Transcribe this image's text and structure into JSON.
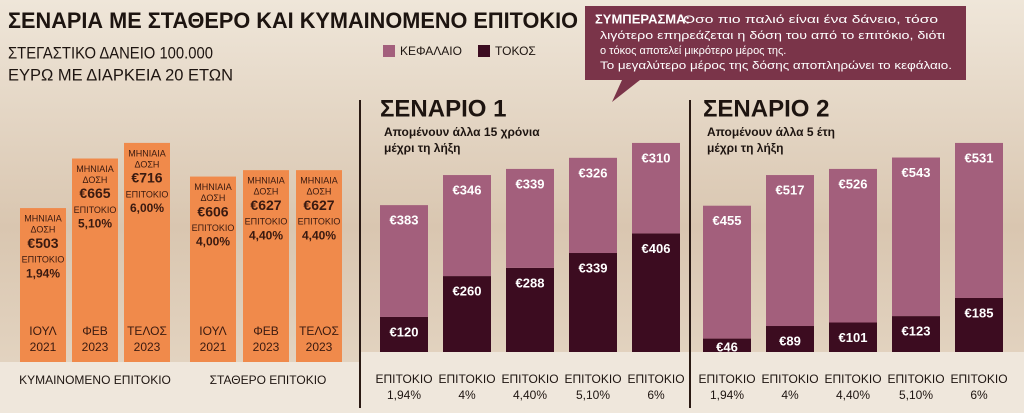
{
  "chart_data": [
    {
      "type": "bar",
      "title": "ΣΕΝΑΡΙΑ ΜΕ ΣΤΑΘΕΡΟ ΚΑΙ ΚΥΜΑΙΝΟΜΕΝΟ ΕΠΙΤΟΚΙΟ",
      "subtitle": [
        "ΣΤΕΓΑΣΤΙΚΟ ΔΑΝΕΙΟ 100.000",
        "ΕΥΡΩ ΜΕ ΔΙΑΡΚΕΙΑ 20 ΕΤΩΝ"
      ],
      "groups": [
        "ΚΥΜΑΙΝΟΜΕΝΟ ΕΠΙΤΟΚΙΟ",
        "ΣΤΑΘΕΡΟ ΕΠΙΤΟΚΙΟ"
      ],
      "payment_label": [
        "ΜΗΝΙΑΙΑ",
        "ΔΟΣΗ"
      ],
      "rate_label": "ΕΠΙΤΟΚΙΟ",
      "categories": [
        [
          "ΙΟΥΛ",
          "2021"
        ],
        [
          "ΦΕΒ",
          "2023"
        ],
        [
          "ΤΕΛΟΣ",
          "2023"
        ],
        [
          "ΙΟΥΛ",
          "2021"
        ],
        [
          "ΦΕΒ",
          "2023"
        ],
        [
          "ΤΕΛΟΣ",
          "2023"
        ]
      ],
      "values": [
        503,
        665,
        716,
        606,
        627,
        627
      ],
      "value_labels": [
        "€503",
        "€665",
        "€716",
        "€606",
        "€627",
        "€627"
      ],
      "rates": [
        1.94,
        5.1,
        6.0,
        4.0,
        4.4,
        4.4
      ],
      "rate_labels": [
        "1,94%",
        "5,10%",
        "6,00%",
        "4,00%",
        "4,40%",
        "4,40%"
      ],
      "color": "#f08a4b"
    },
    {
      "type": "stacked_bar",
      "title": "ΣΕΝΑΡΙΟ 1",
      "subtitle": [
        "Απομένουν άλλα 15 χρόνια",
        "μέχρι τη λήξη"
      ],
      "note_title": "ΣΥΜΠΕΡΑΣΜΑ:",
      "note": [
        "Οσο πιο παλιό είναι ένα δάνειο, τόσο",
        "λιγότερο επηρεάζεται η δόση του από το επιτόκιο, διότι",
        "ο τόκος αποτελεί μικρότερο μέρος της.",
        "Το μεγαλύτερο μέρος της δόσης αποπληρώνει το κεφάλαιο."
      ],
      "categories": [
        [
          "ΕΠΙΤΟΚΙΟ",
          "1,94%"
        ],
        [
          "ΕΠΙΤΟΚΙΟ",
          "4%"
        ],
        [
          "ΕΠΙΤΟΚΙΟ",
          "4,40%"
        ],
        [
          "ΕΠΙΤΟΚΙΟ",
          "5,10%"
        ],
        [
          "ΕΠΙΤΟΚΙΟ",
          "6%"
        ]
      ],
      "series": [
        {
          "name": "ΚΕΦΑΛΑΙΟ",
          "color": "#a35f7c",
          "values": [
            383,
            346,
            339,
            326,
            310
          ],
          "value_labels": [
            "€383",
            "€346",
            "€339",
            "€326",
            "€310"
          ]
        },
        {
          "name": "ΤΟΚΟΣ",
          "color": "#3c0c20",
          "values": [
            120,
            260,
            288,
            339,
            406
          ],
          "value_labels": [
            "€120",
            "€260",
            "€288",
            "€339",
            "€406"
          ]
        }
      ]
    },
    {
      "type": "stacked_bar",
      "title": "ΣΕΝΑΡΙΟ 2",
      "subtitle": [
        "Απομένουν άλλα 5 έτη",
        "μέχρι τη λήξη"
      ],
      "categories": [
        [
          "ΕΠΙΤΟΚΙΟ",
          "1,94%"
        ],
        [
          "ΕΠΙΤΟΚΙΟ",
          "4%"
        ],
        [
          "ΕΠΙΤΟΚΙΟ",
          "4,40%"
        ],
        [
          "ΕΠΙΤΟΚΙΟ",
          "5,10%"
        ],
        [
          "ΕΠΙΤΟΚΙΟ",
          "6%"
        ]
      ],
      "series": [
        {
          "color": "#a35f7c",
          "values": [
            455,
            517,
            526,
            543,
            531
          ],
          "value_labels": [
            "€455",
            "€517",
            "€526",
            "€543",
            "€531"
          ]
        },
        {
          "color": "#3c0c20",
          "values": [
            46,
            89,
            101,
            123,
            185
          ],
          "value_labels": [
            "€46",
            "€89",
            "€101",
            "€123",
            "€185"
          ]
        }
      ]
    }
  ]
}
